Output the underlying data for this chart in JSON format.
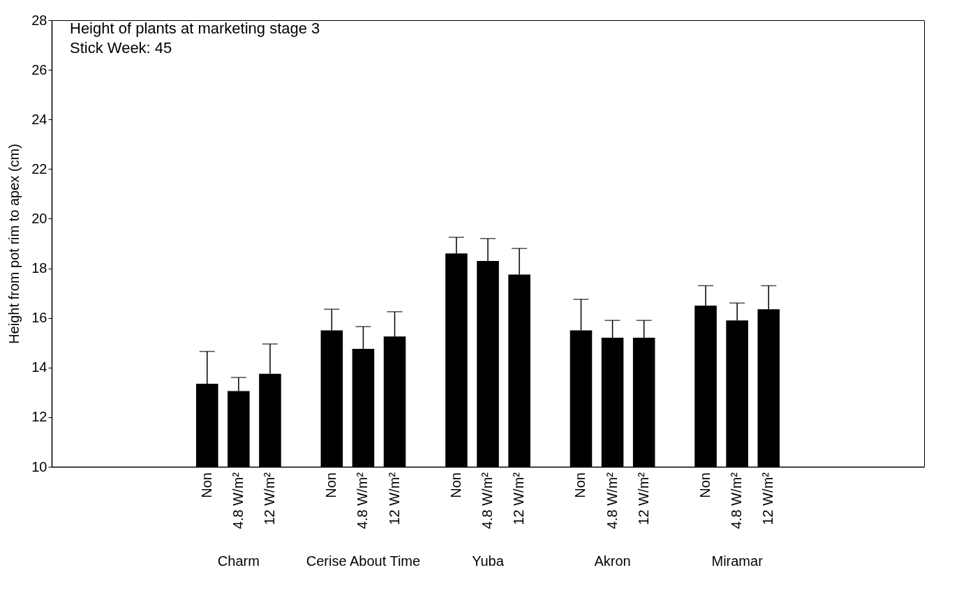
{
  "chart_data": {
    "type": "bar",
    "title": "Height of plants at marketing stage 3",
    "subtitle": "Stick Week:  45",
    "ylabel": "Height from pot rim to apex (cm)",
    "categories": [
      "Charm",
      "Cerise About Time",
      "Yuba",
      "Akron",
      "Miramar"
    ],
    "series": [
      {
        "name": "Non",
        "color": "#000000",
        "values": [
          13.35,
          15.5,
          18.6,
          15.5,
          16.5
        ],
        "errors": [
          [
            13.35,
            14.65
          ],
          [
            15.5,
            16.35
          ],
          [
            18.6,
            19.25
          ],
          [
            15.5,
            16.75
          ],
          [
            16.5,
            17.3
          ]
        ]
      },
      {
        "name": "4.8 W/m²",
        "color": "#000000",
        "values": [
          13.05,
          14.75,
          18.3,
          15.2,
          15.9
        ],
        "errors": [
          [
            13.05,
            13.6
          ],
          [
            14.75,
            15.65
          ],
          [
            18.3,
            19.2
          ],
          [
            15.2,
            15.9
          ],
          [
            15.9,
            16.6
          ]
        ]
      },
      {
        "name": "12 W/m²",
        "color": "#000000",
        "values": [
          13.75,
          15.25,
          17.75,
          15.2,
          16.35
        ],
        "errors": [
          [
            13.75,
            14.95
          ],
          [
            15.25,
            16.25
          ],
          [
            17.75,
            18.8
          ],
          [
            15.2,
            15.9
          ],
          [
            16.35,
            17.3
          ]
        ]
      }
    ],
    "ylim": [
      10,
      28
    ],
    "yticks": [
      10,
      12,
      14,
      16,
      18,
      20,
      22,
      24,
      26,
      28
    ]
  }
}
